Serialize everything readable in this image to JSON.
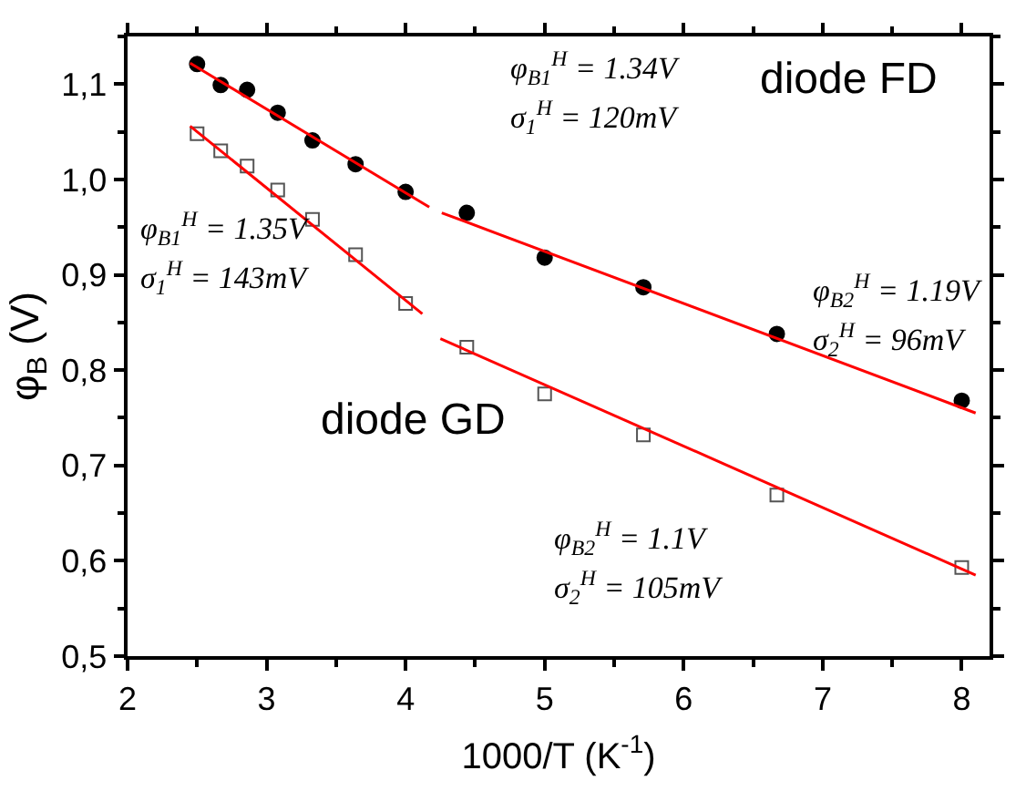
{
  "chart_data": {
    "type": "scatter",
    "xlabel": "1000/T (K$^{-1}$)",
    "ylabel": "φ$_{B}$ (V)",
    "xlim": [
      2,
      8.2
    ],
    "ylim": [
      0.5,
      1.15
    ],
    "xticks": [
      2,
      3,
      4,
      5,
      6,
      7,
      8
    ],
    "yticks": [
      {
        "value": 0.5,
        "label": "0,5"
      },
      {
        "value": 0.6,
        "label": "0,6"
      },
      {
        "value": 0.7,
        "label": "0,7"
      },
      {
        "value": 0.8,
        "label": "0,8"
      },
      {
        "value": 0.9,
        "label": "0,9"
      },
      {
        "value": 1.0,
        "label": "1,0"
      },
      {
        "value": 1.1,
        "label": "1,1"
      }
    ],
    "series": [
      {
        "marker": "circle",
        "color": "#000000",
        "x": [
          2.5,
          2.67,
          2.86,
          3.08,
          3.33,
          3.64,
          4.0,
          4.44,
          5.0,
          5.71,
          6.67,
          8.0
        ],
        "values": [
          1.121,
          1.099,
          1.094,
          1.07,
          1.041,
          1.016,
          0.987,
          0.965,
          0.918,
          0.887,
          0.838,
          0.768
        ]
      },
      {
        "marker": "square-open",
        "color": "#555555",
        "x": [
          2.5,
          2.67,
          2.86,
          3.08,
          3.33,
          3.64,
          4.0,
          4.44,
          5.0,
          5.71,
          6.67,
          8.0
        ],
        "values": [
          1.048,
          1.03,
          1.014,
          0.989,
          0.958,
          0.921,
          0.87,
          0.824,
          0.775,
          0.732,
          0.669,
          0.593
        ]
      },
      {
        "type": "line",
        "marker": "none",
        "color": "#ff0000",
        "x": [
          2.45,
          4.17
        ],
        "values": [
          1.122,
          0.971
        ]
      },
      {
        "type": "line",
        "marker": "none",
        "color": "#ff0000",
        "x": [
          4.26,
          8.1
        ],
        "values": [
          0.965,
          0.755
        ]
      },
      {
        "type": "line",
        "marker": "none",
        "color": "#ff0000",
        "x": [
          2.45,
          4.12
        ],
        "values": [
          1.056,
          0.859
        ]
      },
      {
        "type": "line",
        "marker": "none",
        "color": "#ff0000",
        "x": [
          4.25,
          8.1
        ],
        "values": [
          0.833,
          0.585
        ]
      }
    ],
    "annotations": [
      "diode FD",
      "diode GD",
      "φ$_{B1}$$^{H}$ = 1.34V",
      "σ$_{1}$$^{H}$ = 120mV",
      "φ$_{B1}$$^{H}$ = 1.35V",
      "σ$_{1}$$^{H}$ = 143mV",
      "φ$_{B2}$$^{H}$ = 1.19V",
      "σ$_{2}$$^{H}$ = 96mV",
      "φ$_{B2}$$^{H}$ = 1.1V",
      "σ$_{2}$$^{H}$ = 105mV"
    ]
  }
}
